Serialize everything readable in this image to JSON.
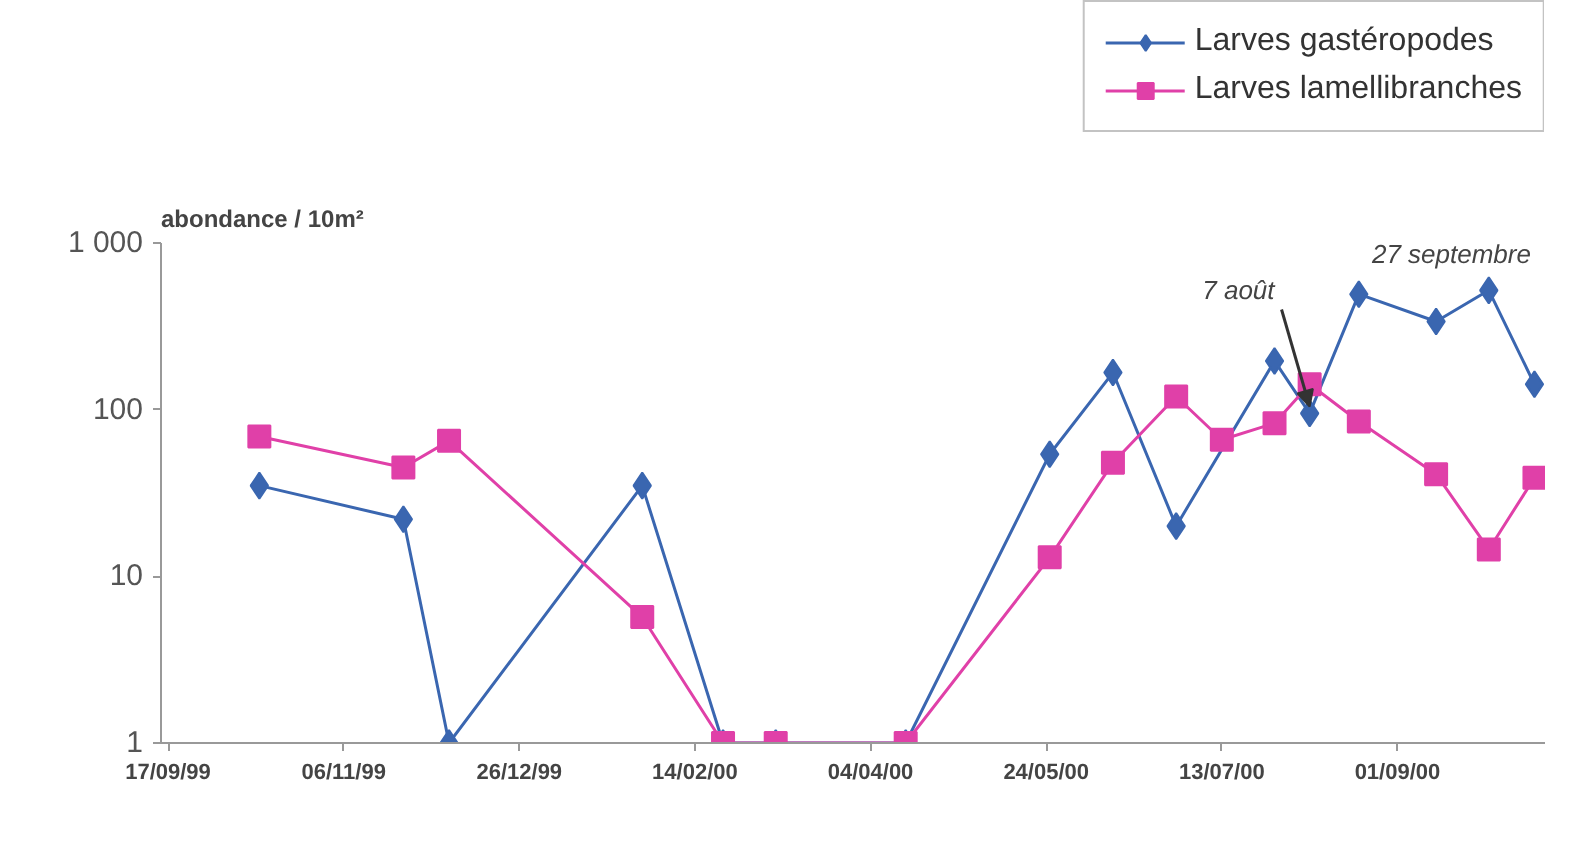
{
  "chart_data": {
    "type": "line",
    "ylabel": "abondance / 10m²",
    "xlim": [
      "1999-09-15",
      "2000-10-13"
    ],
    "xticks": [
      {
        "value": "1999-09-17",
        "label": "17/09/99"
      },
      {
        "value": "1999-11-06",
        "label": "06/11/99"
      },
      {
        "value": "1999-12-26",
        "label": "26/12/99"
      },
      {
        "value": "2000-02-14",
        "label": "14/02/00"
      },
      {
        "value": "2000-04-04",
        "label": "04/04/00"
      },
      {
        "value": "2000-05-24",
        "label": "24/05/00"
      },
      {
        "value": "2000-07-13",
        "label": "13/07/00"
      },
      {
        "value": "2000-09-01",
        "label": "01/09/00"
      }
    ],
    "ylim": [
      1,
      1000
    ],
    "yticks": [
      1,
      10,
      100,
      {
        "value": 1000,
        "label": "1 000"
      }
    ],
    "log": true,
    "grid": false,
    "legend": "top right",
    "series": [
      {
        "name": "Larves gastéropodes",
        "color": "#3a66b0",
        "marker": "diamond",
        "x": [
          "1999-10-13",
          "1999-11-23",
          "1999-12-06",
          "2000-01-30",
          "2000-02-22",
          "2000-03-08",
          "2000-04-14",
          "2000-05-25",
          "2000-06-12",
          "2000-06-30",
          "2000-07-28",
          "2000-08-07",
          "2000-08-21",
          "2000-09-12",
          "2000-09-27",
          "2000-10-10"
        ],
        "values": [
          35,
          22,
          1,
          35,
          1,
          1,
          1,
          54,
          167,
          20,
          196,
          95,
          493,
          338,
          520,
          142
        ]
      },
      {
        "name": "Larves lamellibranches",
        "color": "#e040a8",
        "marker": "square",
        "x": [
          "1999-10-13",
          "1999-11-23",
          "1999-12-06",
          "2000-01-30",
          "2000-02-22",
          "2000-03-08",
          "2000-04-14",
          "2000-05-25",
          "2000-06-12",
          "2000-06-30",
          "2000-07-13",
          "2000-07-28",
          "2000-08-07",
          "2000-08-21",
          "2000-09-12",
          "2000-09-27",
          "2000-10-10"
        ],
        "values": [
          69,
          45,
          65,
          5.7,
          1,
          1,
          1,
          13,
          48,
          120,
          66,
          83,
          142,
          85,
          41,
          14.5,
          39
        ]
      }
    ],
    "annotations": [
      {
        "text": "7 août",
        "x": "2000-08-07",
        "y": 95
      },
      {
        "text": "27 septembre",
        "x": "2000-09-27",
        "y": 520
      }
    ]
  }
}
